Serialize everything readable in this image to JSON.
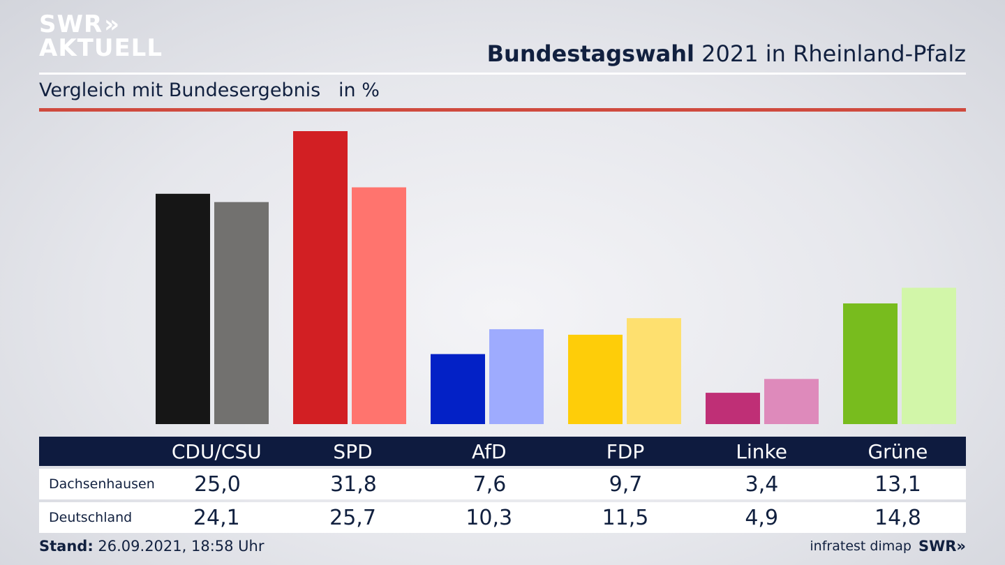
{
  "logo": {
    "line1": "SWR",
    "chevrons": "»",
    "line2": "AKTUELL"
  },
  "header": {
    "title_bold": "Bundestagswahl",
    "title_rest": " 2021 in Rheinland-Pfalz",
    "subtitle": "Vergleich mit Bundesergebnis   in %"
  },
  "chart_data": {
    "type": "bar",
    "categories": [
      "CDU/CSU",
      "SPD",
      "AfD",
      "FDP",
      "Linke",
      "Grüne"
    ],
    "series": [
      {
        "name": "Dachsenhausen",
        "values": [
          25.0,
          31.8,
          7.6,
          9.7,
          3.4,
          13.1
        ],
        "colors": [
          "#161616",
          "#d21f23",
          "#0321c6",
          "#fecd09",
          "#bf2f76",
          "#78bc1e"
        ]
      },
      {
        "name": "Deutschland",
        "values": [
          24.1,
          25.7,
          10.3,
          11.5,
          4.9,
          14.8
        ],
        "colors": [
          "#72716f",
          "#ff746e",
          "#9eabfe",
          "#fee06f",
          "#de8abb",
          "#d2f6a9"
        ]
      }
    ],
    "title": "Bundestagswahl 2021 in Rheinland-Pfalz",
    "ylabel": "in %",
    "ylim": [
      0,
      32
    ]
  },
  "table": {
    "row_labels": [
      "Dachsenhausen",
      "Deutschland"
    ],
    "values_display": [
      [
        "25,0",
        "31,8",
        "7,6",
        "9,7",
        "3,4",
        "13,1"
      ],
      [
        "24,1",
        "25,7",
        "10,3",
        "11,5",
        "4,9",
        "14,8"
      ]
    ]
  },
  "footer": {
    "stand_label": "Stand:",
    "stand_value": " 26.09.2021, 18:58 Uhr",
    "source": "infratest dimap",
    "brand": "SWR",
    "brand_chevrons": "»"
  }
}
